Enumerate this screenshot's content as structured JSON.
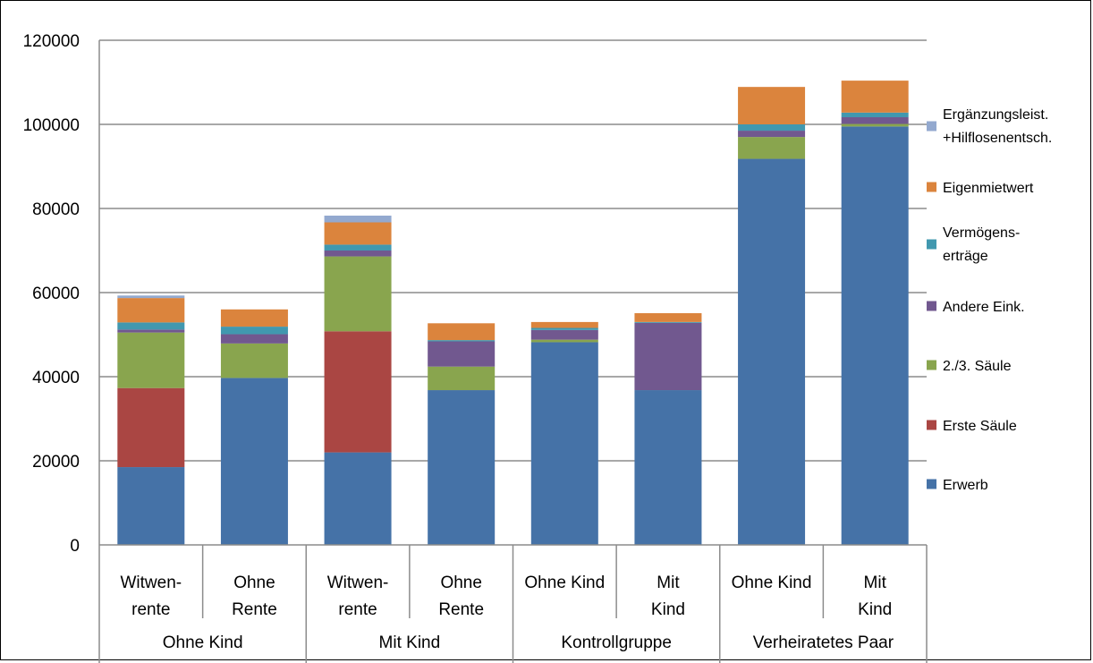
{
  "chart_data": {
    "type": "bar",
    "stacked": true,
    "ylim": [
      0,
      120000
    ],
    "yticks": [
      0,
      20000,
      40000,
      60000,
      80000,
      100000,
      120000
    ],
    "grid": true,
    "legend_position": "right",
    "bars": [
      {
        "lines": [
          "Witwen-",
          "rente"
        ],
        "group": "Ohne Kind"
      },
      {
        "lines": [
          "Ohne",
          "Rente"
        ],
        "group": "Ohne Kind"
      },
      {
        "lines": [
          "Witwen-",
          "rente"
        ],
        "group": "Mit Kind"
      },
      {
        "lines": [
          "Ohne",
          "Rente"
        ],
        "group": "Mit Kind"
      },
      {
        "lines": [
          "Ohne Kind"
        ],
        "group": "Kontrollgruppe"
      },
      {
        "lines": [
          "Mit",
          "Kind"
        ],
        "group": "Kontrollgruppe"
      },
      {
        "lines": [
          "Ohne Kind"
        ],
        "group": "Verheiratetes Paar"
      },
      {
        "lines": [
          "Mit",
          "Kind"
        ],
        "group": "Verheiratetes Paar"
      }
    ],
    "groups": [
      "Ohne Kind",
      "Mit Kind",
      "Kontrollgruppe",
      "Verheiratetes Paar"
    ],
    "series": [
      {
        "name": "Erwerb",
        "color": "#4572a7",
        "values": [
          18500,
          39700,
          22000,
          36800,
          48200,
          36800,
          91800,
          99500
        ]
      },
      {
        "name": "Erste Säule",
        "color": "#aa4643",
        "values": [
          18800,
          0,
          28800,
          0,
          0,
          0,
          0,
          0
        ]
      },
      {
        "name": "2./3. Säule",
        "color": "#89a54e",
        "values": [
          13200,
          8200,
          17800,
          5600,
          600,
          0,
          5200,
          600
        ]
      },
      {
        "name": "Andere Eink.",
        "color": "#71588f",
        "values": [
          700,
          2200,
          1400,
          6000,
          2300,
          16000,
          1500,
          1600
        ]
      },
      {
        "name": "Vermögens-\nerträge",
        "color": "#4198af",
        "values": [
          1700,
          1800,
          1400,
          300,
          500,
          200,
          1500,
          1100
        ]
      },
      {
        "name": "Eigenmietwert",
        "color": "#db843d",
        "values": [
          5800,
          4100,
          5300,
          4000,
          1400,
          2100,
          8900,
          7600
        ]
      },
      {
        "name": "Ergänzungsleist.\n+Hilflosenentsch.",
        "color": "#93a9cf",
        "values": [
          600,
          0,
          1600,
          0,
          0,
          0,
          0,
          0
        ]
      }
    ]
  }
}
